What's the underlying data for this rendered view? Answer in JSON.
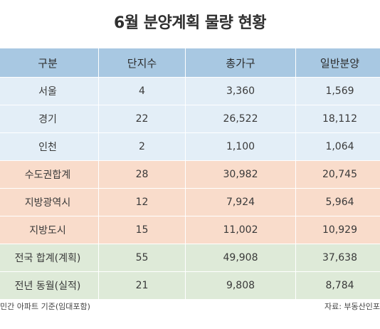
{
  "title": "6월 분양계획 물량 현황",
  "table": {
    "headers": [
      "구분",
      "단지수",
      "총가구",
      "일반분양"
    ],
    "rows": [
      {
        "group": "blue",
        "cells": [
          "서울",
          "4",
          "3,360",
          "1,569"
        ]
      },
      {
        "group": "blue",
        "cells": [
          "경기",
          "22",
          "26,522",
          "18,112"
        ]
      },
      {
        "group": "blue",
        "cells": [
          "인천",
          "2",
          "1,100",
          "1,064"
        ]
      },
      {
        "group": "orange",
        "cells": [
          "수도권합계",
          "28",
          "30,982",
          "20,745"
        ]
      },
      {
        "group": "orange",
        "cells": [
          "지방광역시",
          "12",
          "7,924",
          "5,964"
        ]
      },
      {
        "group": "orange",
        "cells": [
          "지방도시",
          "15",
          "11,002",
          "10,929"
        ]
      },
      {
        "group": "green",
        "cells": [
          "전국 합계(계획)",
          "55",
          "49,908",
          "37,638"
        ]
      },
      {
        "group": "green",
        "cells": [
          "전년 동월(실적)",
          "21",
          "9,808",
          "8,784"
        ]
      }
    ]
  },
  "footer": {
    "note": "민간 아파트 기준(임대포함)",
    "source": "자료: 부동산인포"
  },
  "colors": {
    "header": "#a8c8e2",
    "blue_rows": "#e3eef7",
    "orange_rows": "#f9dccb",
    "green_rows": "#deead8"
  }
}
